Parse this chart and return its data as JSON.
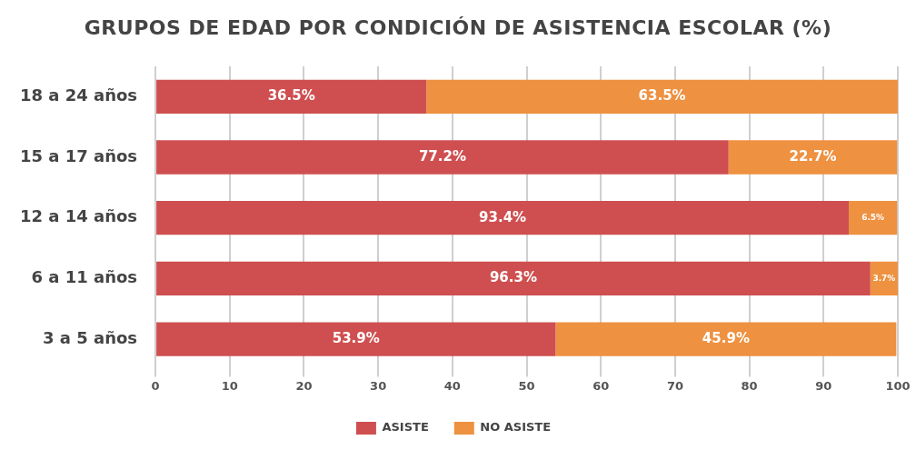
{
  "chart_data": {
    "type": "bar",
    "orientation": "horizontal",
    "stacked": true,
    "title": "GRUPOS DE EDAD POR CONDICIÓN DE ASISTENCIA ESCOLAR (%)",
    "categories": [
      "18 a 24 años",
      "15 a 17 años",
      "12 a 14 años",
      "6 a 11 años",
      "3 a 5 años"
    ],
    "series": [
      {
        "name": "ASISTE",
        "color": "#cf4f50",
        "values": [
          36.5,
          77.2,
          93.4,
          96.3,
          53.9
        ],
        "value_labels": [
          "36.5%",
          "77.2%",
          "93.4%",
          "96.3%",
          "53.9%"
        ]
      },
      {
        "name": "NO ASISTE",
        "color": "#ee9140",
        "values": [
          63.5,
          22.7,
          6.5,
          3.7,
          45.9
        ],
        "value_labels": [
          "63.5%",
          "22.7%",
          "6.5%",
          "3.7%",
          "45.9%"
        ]
      }
    ],
    "xlim": [
      0,
      100
    ],
    "xticks": [
      0,
      10,
      20,
      30,
      40,
      50,
      60,
      70,
      80,
      90,
      100
    ],
    "grid": "x",
    "legend": "bottom"
  }
}
